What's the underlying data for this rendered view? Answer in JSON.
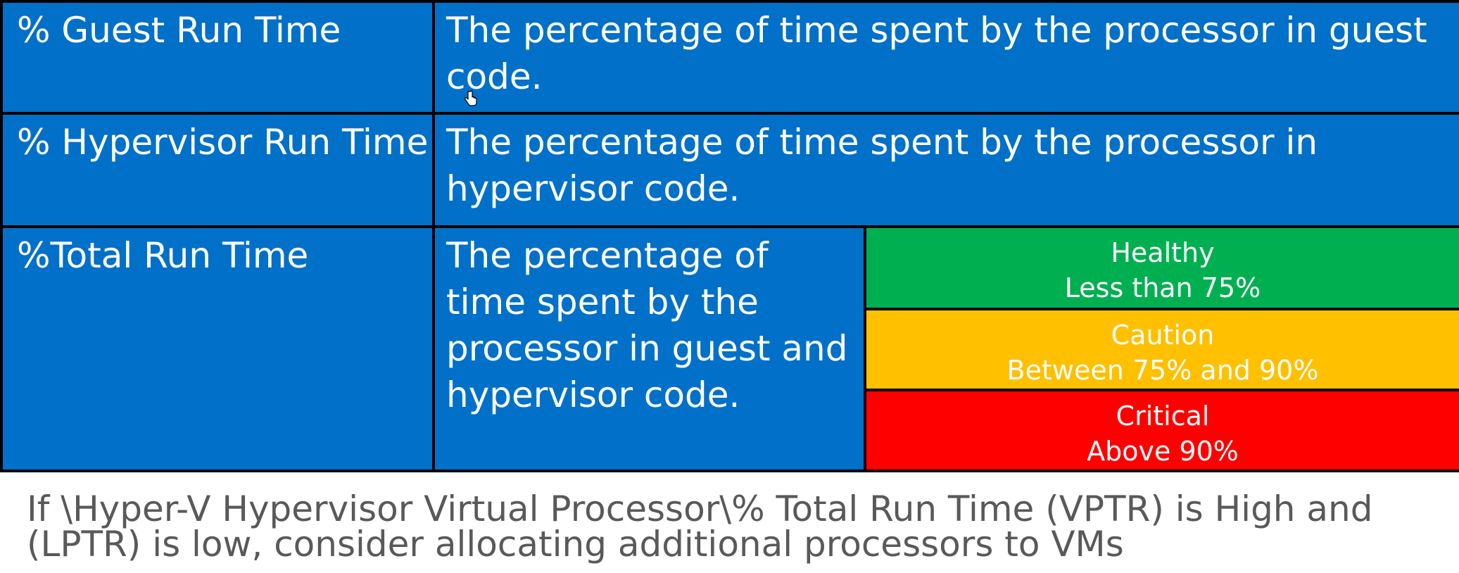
{
  "rows": [
    {
      "label": "% Guest Run Time",
      "description": "The percentage of time spent by the processor in guest code."
    },
    {
      "label": "% Hypervisor Run Time",
      "description": "The percentage of time spent by the processor in hypervisor code."
    },
    {
      "label": "%Total Run Time",
      "description": "The percentage of time spent by the processor in guest and hypervisor code."
    }
  ],
  "thresholds": [
    {
      "status": "Healthy",
      "range": "Less than 75%",
      "color": "#00b050"
    },
    {
      "status": "Caution",
      "range": "Between 75% and 90%",
      "color": "#ffc000"
    },
    {
      "status": "Critical",
      "range": "Above 90%",
      "color": "#ff0000"
    }
  ],
  "colors": {
    "cell_background": "#0070c9",
    "border": "#000000",
    "footer_text": "#595959"
  },
  "footer": {
    "line1": "If \\Hyper-V Hypervisor Virtual Processor\\% Total Run Time (VPTR) is High and",
    "line2": "(LPTR) is low, consider allocating additional processors to VMs"
  }
}
